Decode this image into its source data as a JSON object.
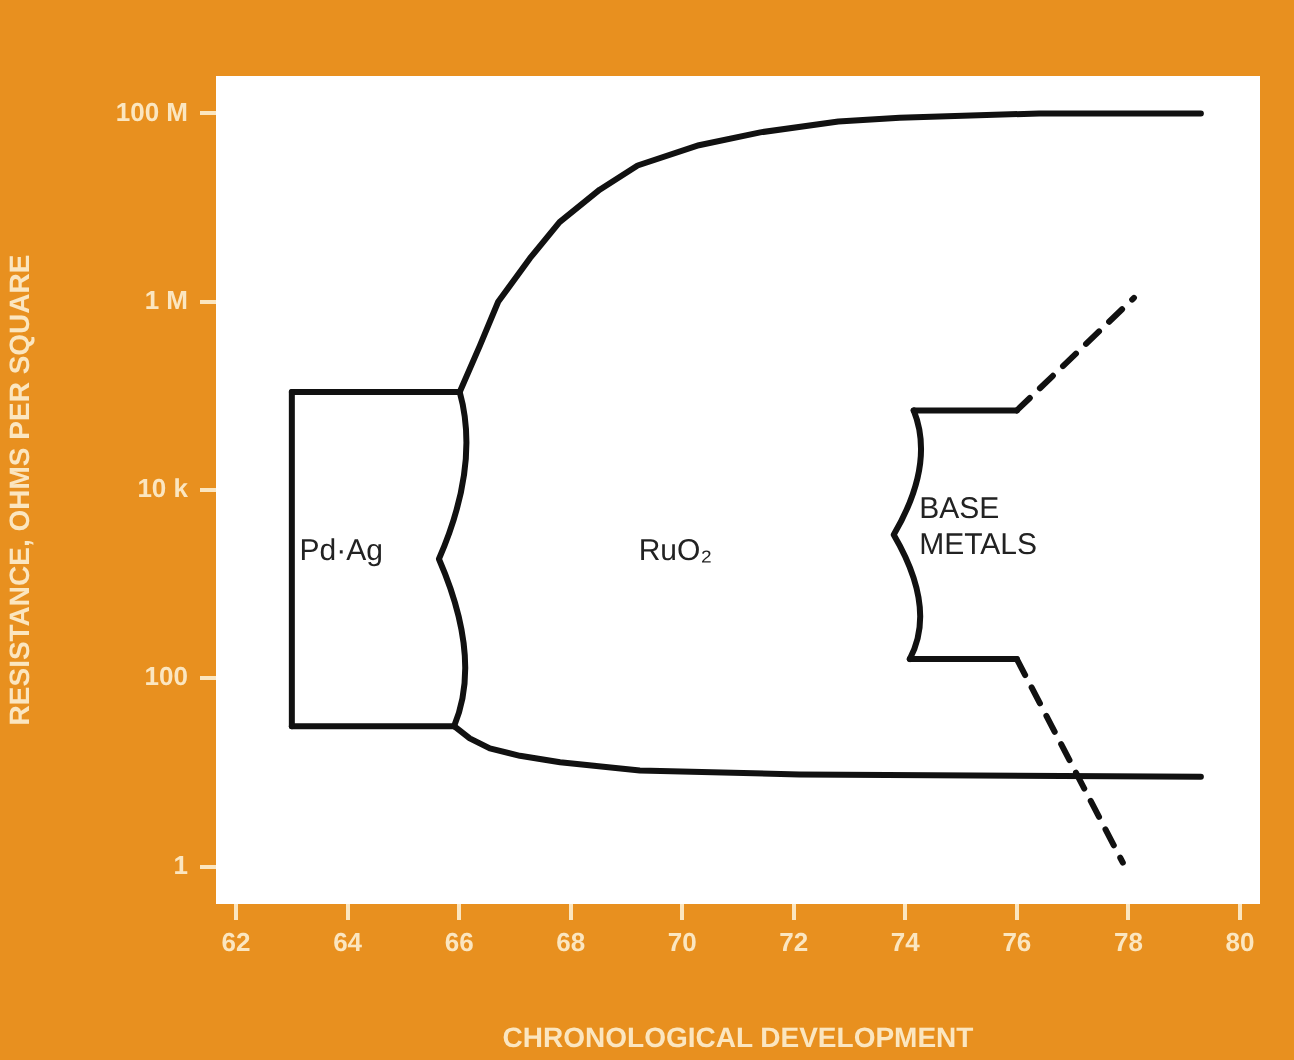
{
  "chart_data": {
    "type": "line",
    "xlabel": "CHRONOLOGICAL DEVELOPMENT",
    "ylabel": "RESISTANCE, OHMS PER SQUARE",
    "log": "y",
    "grid": false,
    "marker": "none",
    "xlim": [
      61.64,
      80.36
    ],
    "xticks": [
      62,
      64,
      66,
      68,
      70,
      72,
      74,
      76,
      78,
      80
    ],
    "ylim": [
      0.4,
      250000000
    ],
    "yticks": [
      {
        "value": 1,
        "label": "1"
      },
      {
        "value": 100,
        "label": "100"
      },
      {
        "value": 10000,
        "label": "10 k"
      },
      {
        "value": 1000000,
        "label": "1 M"
      },
      {
        "value": 100000000,
        "label": "100 M"
      }
    ],
    "series": [
      {
        "color": "#111111",
        "line_style": "solid",
        "x": [
          63,
          63
        ],
        "values": [
          31,
          110000
        ]
      },
      {
        "color": "#111111",
        "line_style": "solid",
        "x": [
          63,
          66.01
        ],
        "values": [
          110000,
          110000
        ]
      },
      {
        "color": "#111111",
        "line_style": "solid",
        "x": [
          63,
          65.91
        ],
        "values": [
          31,
          31
        ]
      },
      {
        "color": "#111111",
        "line_style": "solid",
        "x": [
          66.01,
          66.37,
          66.7,
          67.27,
          67.8,
          68.52,
          69.2,
          70.3,
          71.4,
          72.8,
          73.9,
          76.4,
          79.3
        ],
        "values": [
          110000,
          340000,
          1000000,
          2900000,
          7000000,
          15500000,
          28000000,
          46000000,
          63000000,
          82000000,
          90000000,
          100000000,
          100000000
        ]
      },
      {
        "color": "#111111",
        "line_style": "solid",
        "x": [
          65.91,
          66.19,
          66.55,
          67.09,
          67.81,
          69.24,
          72.1,
          79.3
        ],
        "values": [
          31,
          23,
          18,
          15,
          12.8,
          10.5,
          9.5,
          9
        ]
      },
      {
        "color": "#111111",
        "line_style": "solid",
        "x": [
          74.15,
          76
        ],
        "values": [
          70000,
          70000
        ]
      },
      {
        "color": "#111111",
        "line_style": "solid",
        "x": [
          74.08,
          76
        ],
        "values": [
          160,
          160
        ]
      },
      {
        "color": "#111111",
        "line_style": "dashed",
        "x": [
          76,
          78.1
        ],
        "values": [
          70000,
          1100000
        ]
      },
      {
        "color": "#111111",
        "line_style": "dashed",
        "x": [
          76,
          77.9
        ],
        "values": [
          160,
          1.1
        ]
      }
    ],
    "annotations": [
      "Pd·Ag",
      "RuO₂",
      "BASE\nMETALS"
    ]
  }
}
